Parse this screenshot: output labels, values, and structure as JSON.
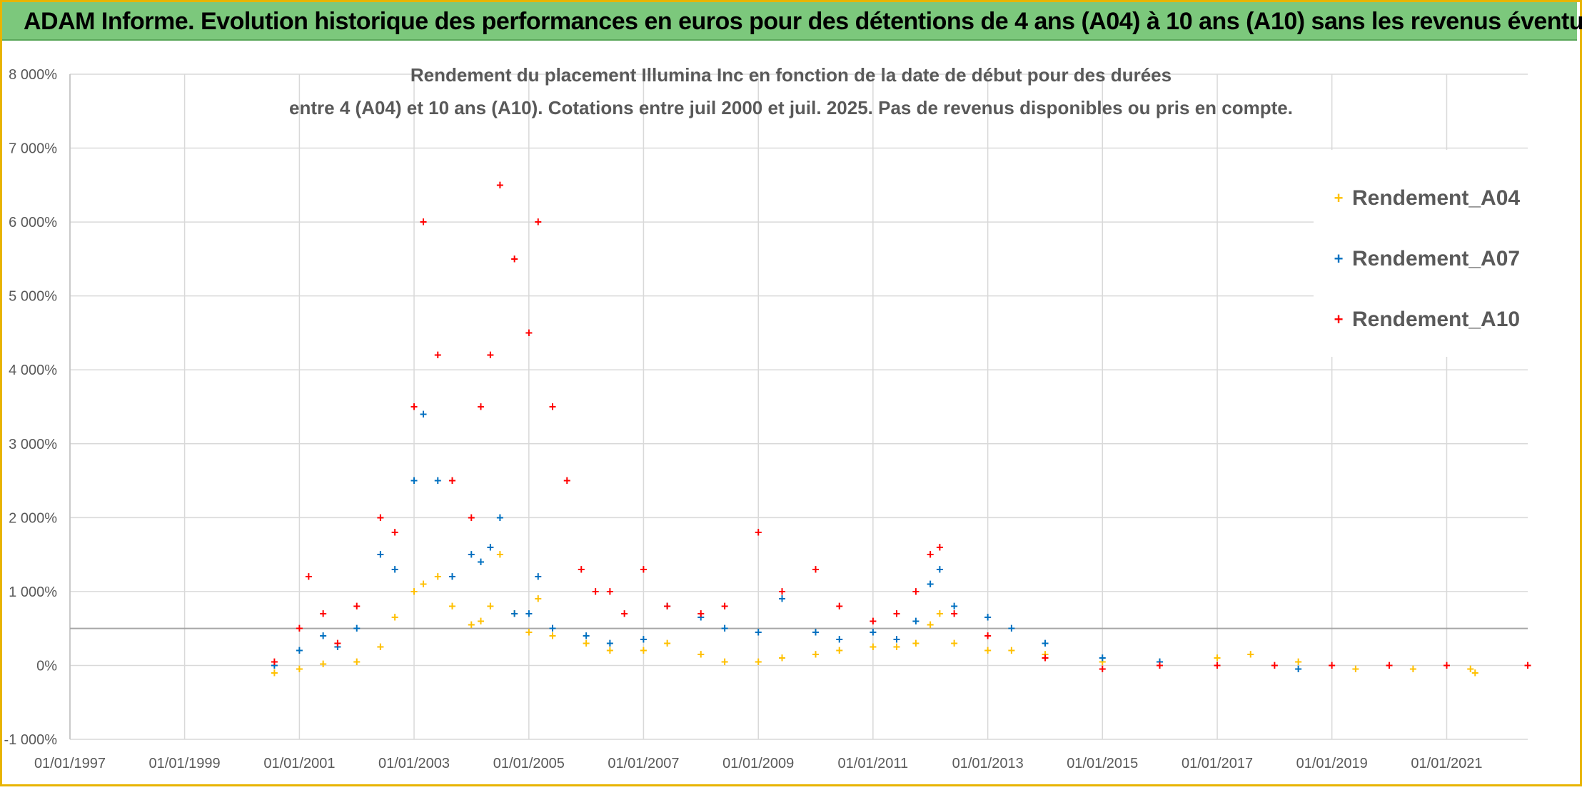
{
  "banner": {
    "title": "ADAM Informe. Evolution historique des performances en euros pour des détentions de 4 ans (A04) à 10 ans (A10) sans les revenus éventuels"
  },
  "chart_data": {
    "type": "scatter",
    "title_line1": "Rendement du placement Illumina Inc en fonction de la date de début pour des durées",
    "title_line2": "entre 4 (A04) et 10 ans (A10). Cotations entre juil 2000 et juil. 2025. Pas de revenus disponibles ou pris en compte.",
    "xlabel": "",
    "ylabel": "",
    "xlim": [
      "1997-01-01",
      "2022-06-01"
    ],
    "ylim": [
      -1000,
      8000
    ],
    "y_ticks": [
      "-1 000%",
      "0%",
      "1 000%",
      "2 000%",
      "3 000%",
      "4 000%",
      "5 000%",
      "6 000%",
      "7 000%",
      "8 000%"
    ],
    "x_ticks": [
      "01/01/1997",
      "01/01/1999",
      "01/01/2001",
      "01/01/2003",
      "01/01/2005",
      "01/01/2007",
      "01/01/2009",
      "01/01/2011",
      "01/01/2013",
      "01/01/2015",
      "01/01/2017",
      "01/01/2019",
      "01/01/2021"
    ],
    "reference_line_y": 500,
    "grid": true,
    "legend_position": "top-right",
    "series": [
      {
        "name": "Rendement_A04",
        "color": "#ffc000",
        "x": [
          "2000-07-26",
          "2001-01-01",
          "2001-06-01",
          "2002-01-01",
          "2002-06-01",
          "2002-09-01",
          "2003-01-01",
          "2003-03-01",
          "2003-06-01",
          "2003-09-01",
          "2004-01-01",
          "2004-03-01",
          "2004-05-01",
          "2004-07-01",
          "2004-10-01",
          "2005-01-01",
          "2005-03-01",
          "2005-06-01",
          "2006-01-01",
          "2006-06-01",
          "2007-01-01",
          "2007-06-01",
          "2008-01-01",
          "2008-06-01",
          "2009-01-01",
          "2009-06-01",
          "2010-01-01",
          "2010-06-01",
          "2011-01-01",
          "2011-06-01",
          "2011-10-01",
          "2012-01-01",
          "2012-03-01",
          "2012-06-01",
          "2013-01-01",
          "2013-06-01",
          "2014-01-01",
          "2015-01-01",
          "2016-01-01",
          "2017-01-01",
          "2017-08-01",
          "2018-06-01",
          "2019-06-01",
          "2020-06-01",
          "2021-06-01",
          "2021-07-01"
        ],
        "y": [
          -100,
          -50,
          20,
          50,
          250,
          650,
          1000,
          1100,
          1200,
          800,
          550,
          600,
          800,
          1500,
          700,
          450,
          900,
          400,
          300,
          200,
          200,
          300,
          150,
          50,
          50,
          100,
          150,
          200,
          250,
          250,
          300,
          550,
          700,
          300,
          200,
          200,
          150,
          50,
          50,
          100,
          150,
          50,
          -50,
          -50,
          -50,
          -100
        ]
      },
      {
        "name": "Rendement_A07",
        "color": "#0070c0",
        "x": [
          "2000-07-26",
          "2001-01-01",
          "2001-06-01",
          "2001-09-01",
          "2002-01-01",
          "2002-06-01",
          "2002-09-01",
          "2003-01-01",
          "2003-03-01",
          "2003-06-01",
          "2003-09-01",
          "2004-01-01",
          "2004-03-01",
          "2004-05-01",
          "2004-07-01",
          "2004-10-01",
          "2005-01-01",
          "2005-03-01",
          "2005-06-01",
          "2006-01-01",
          "2006-06-01",
          "2007-01-01",
          "2007-06-01",
          "2008-01-01",
          "2008-06-01",
          "2009-01-01",
          "2009-06-01",
          "2010-01-01",
          "2010-06-01",
          "2011-01-01",
          "2011-06-01",
          "2011-10-01",
          "2012-01-01",
          "2012-03-01",
          "2012-06-01",
          "2013-01-01",
          "2013-06-01",
          "2014-01-01",
          "2015-01-01",
          "2016-01-01",
          "2017-01-01",
          "2018-06-01"
        ],
        "y": [
          0,
          200,
          400,
          250,
          500,
          1500,
          1300,
          2500,
          3400,
          2500,
          1200,
          1500,
          1400,
          1600,
          2000,
          700,
          700,
          1200,
          500,
          400,
          300,
          350,
          800,
          650,
          500,
          450,
          900,
          450,
          350,
          450,
          350,
          600,
          1100,
          1300,
          800,
          650,
          500,
          300,
          100,
          50,
          0,
          -50
        ]
      },
      {
        "name": "Rendement_A10",
        "color": "#ff0000",
        "x": [
          "2000-07-26",
          "2001-01-01",
          "2001-03-01",
          "2001-06-01",
          "2001-09-01",
          "2002-01-01",
          "2002-06-01",
          "2002-09-01",
          "2003-01-01",
          "2003-03-01",
          "2003-06-01",
          "2003-09-01",
          "2004-01-01",
          "2004-03-01",
          "2004-05-01",
          "2004-07-01",
          "2004-10-01",
          "2005-01-01",
          "2005-03-01",
          "2005-06-01",
          "2005-09-01",
          "2005-12-01",
          "2006-03-01",
          "2006-06-01",
          "2006-09-01",
          "2007-01-01",
          "2007-06-01",
          "2008-01-01",
          "2008-06-01",
          "2009-01-01",
          "2009-06-01",
          "2010-01-01",
          "2010-06-01",
          "2011-01-01",
          "2011-06-01",
          "2011-10-01",
          "2012-01-01",
          "2012-03-01",
          "2012-06-01",
          "2013-01-01",
          "2014-01-01",
          "2015-01-01",
          "2016-01-01",
          "2017-01-01",
          "2018-01-01",
          "2019-01-01",
          "2020-01-01",
          "2021-01-01",
          "2022-06-01"
        ],
        "y": [
          50,
          500,
          1200,
          700,
          300,
          800,
          2000,
          1800,
          3500,
          6000,
          4200,
          2500,
          2000,
          3500,
          4200,
          6500,
          5500,
          4500,
          6000,
          3500,
          2500,
          1300,
          1000,
          1000,
          700,
          1300,
          800,
          700,
          800,
          1800,
          1000,
          1300,
          800,
          600,
          700,
          1000,
          1500,
          1600,
          700,
          400,
          100,
          -50,
          0,
          0,
          0,
          0,
          0,
          0,
          0
        ]
      }
    ]
  }
}
